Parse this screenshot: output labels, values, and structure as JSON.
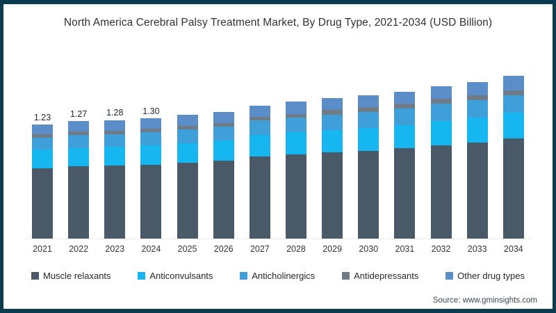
{
  "window": {
    "border_color": "#0c3b50",
    "background": "#ffffff"
  },
  "title": "North America Cerebral Palsy Treatment Market, By Drug Type, 2021-2034 (USD Billion)",
  "source_text": "Source: www.gminsights.com",
  "chart_data": {
    "type": "bar",
    "stacked": true,
    "title": "North America Cerebral Palsy Treatment Market, By Drug Type, 2021-2034 (USD Billion)",
    "unit": "USD Billion",
    "categories": [
      "2021",
      "2022",
      "2023",
      "2024",
      "2025",
      "2026",
      "2027",
      "2028",
      "2029",
      "2030",
      "2031",
      "2032",
      "2033",
      "2034"
    ],
    "totals": [
      1.23,
      1.27,
      1.28,
      1.3,
      1.34,
      1.37,
      1.44,
      1.48,
      1.52,
      1.55,
      1.59,
      1.65,
      1.69,
      1.76
    ],
    "bar_labels": [
      "1.23",
      "1.27",
      "1.28",
      "1.30",
      "",
      "",
      "",
      "",
      "",
      "",
      "",
      "",
      "",
      ""
    ],
    "series": [
      {
        "name": "Muscle relaxants",
        "color": "#4a5968",
        "values": [
          0.76,
          0.78,
          0.79,
          0.8,
          0.82,
          0.84,
          0.89,
          0.91,
          0.93,
          0.95,
          0.98,
          1.01,
          1.04,
          1.08
        ]
      },
      {
        "name": "Anticonvulsants",
        "color": "#16b6f0",
        "values": [
          0.2,
          0.2,
          0.2,
          0.21,
          0.21,
          0.22,
          0.23,
          0.24,
          0.24,
          0.25,
          0.25,
          0.26,
          0.27,
          0.28
        ]
      },
      {
        "name": "Anticholinergics",
        "color": "#3fa0d9",
        "values": [
          0.13,
          0.14,
          0.14,
          0.14,
          0.15,
          0.15,
          0.16,
          0.16,
          0.17,
          0.17,
          0.18,
          0.19,
          0.19,
          0.19
        ]
      },
      {
        "name": "Antidepressants",
        "color": "#6f7b87",
        "values": [
          0.04,
          0.04,
          0.04,
          0.04,
          0.04,
          0.04,
          0.04,
          0.04,
          0.05,
          0.05,
          0.05,
          0.05,
          0.05,
          0.05
        ]
      },
      {
        "name": "Other drug types",
        "color": "#5b8ec9",
        "values": [
          0.1,
          0.11,
          0.11,
          0.11,
          0.12,
          0.12,
          0.12,
          0.13,
          0.13,
          0.13,
          0.13,
          0.14,
          0.14,
          0.16
        ]
      }
    ],
    "ylim": [
      0,
      1.85
    ],
    "grid": false,
    "axis_line_color": "#ebebeb",
    "legend_position": "bottom"
  }
}
